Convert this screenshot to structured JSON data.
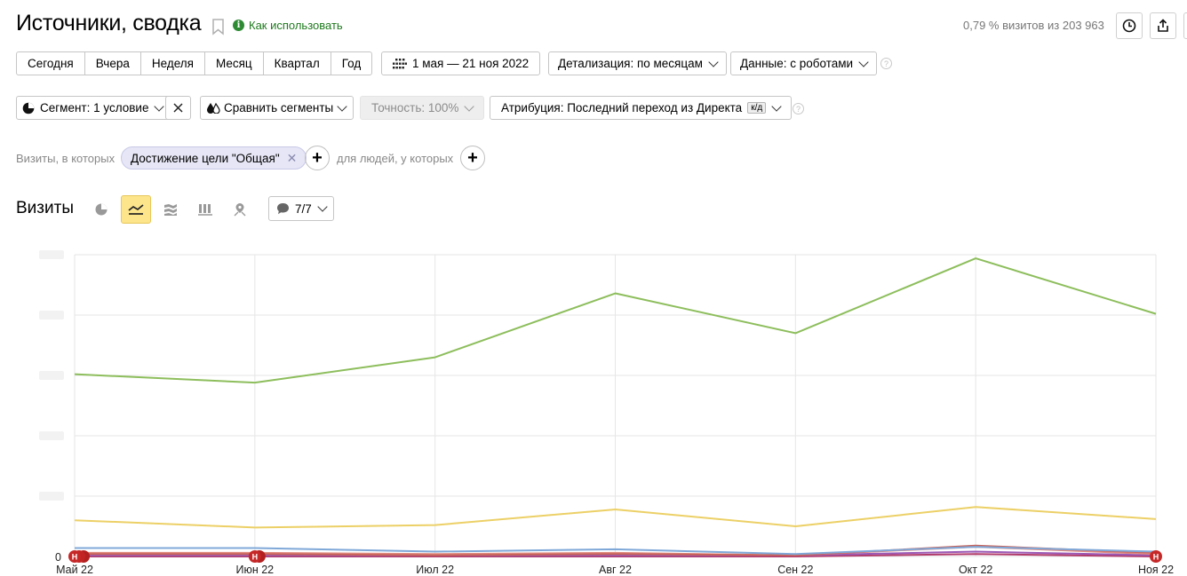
{
  "header": {
    "title": "Источники, сводка",
    "howto_label": "Как использовать",
    "sampling": "0,79 % визитов из 203 963"
  },
  "periods": [
    "Сегодня",
    "Вчера",
    "Неделя",
    "Месяц",
    "Квартал",
    "Год"
  ],
  "date_range": "1 мая — 21 ноя 2022",
  "detail": "Детализация: по месяцам",
  "data_mode": "Данные: с роботами",
  "segment": "Сегмент: 1 условие",
  "compare": "Сравнить сегменты",
  "accuracy": "Точность: 100%",
  "attribution": {
    "label": "Атрибуция: Последний переход из Директа",
    "badge": "к/д"
  },
  "filter": {
    "prefix": "Визиты, в которых",
    "chip": "Достижение цели \"Общая\"",
    "people": "для людей, у которых"
  },
  "chart_section": {
    "title": "Визиты",
    "series_count": "7/7"
  },
  "chart_data": {
    "type": "line",
    "categories": [
      "Май 22",
      "Июн 22",
      "Июл 22",
      "Авг 22",
      "Сен 22",
      "Окт 22",
      "Ноя 22"
    ],
    "ylim": [
      0,
      250
    ],
    "y_ticks_visible": [
      "0"
    ],
    "grid": true,
    "series": [
      {
        "color": "#8dbe5c",
        "values": [
          151,
          144,
          165,
          218,
          185,
          247,
          201
        ]
      },
      {
        "color": "#ecd066",
        "values": [
          30,
          24,
          26,
          39,
          25,
          41,
          31
        ]
      },
      {
        "color": "#7fa8d8",
        "values": [
          7,
          7,
          4,
          6,
          2,
          8,
          4
        ]
      },
      {
        "color": "#c8645a",
        "values": [
          2,
          2,
          1,
          2,
          1,
          9,
          3
        ]
      },
      {
        "color": "#e18c80",
        "values": [
          3,
          3,
          2,
          3,
          1,
          8,
          2
        ]
      },
      {
        "color": "#9b59b6",
        "values": [
          1,
          1,
          1,
          1,
          1,
          4,
          1
        ]
      },
      {
        "color": "#b13b6b",
        "values": [
          0,
          0,
          0,
          0,
          0,
          2,
          0
        ]
      }
    ],
    "markers": [
      {
        "category": "Май 22",
        "label": "Н"
      },
      {
        "category": "Июн 22",
        "label": "Н"
      },
      {
        "category": "Ноя 22",
        "label": "Н"
      }
    ]
  }
}
